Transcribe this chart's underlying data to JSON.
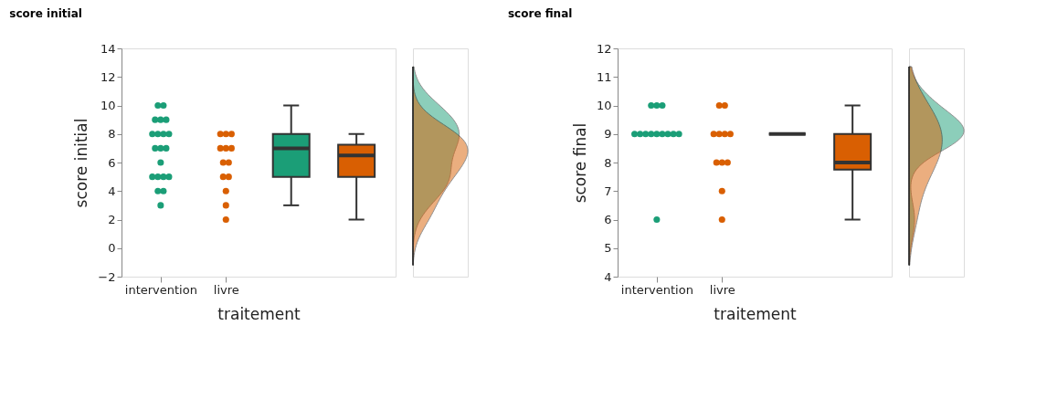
{
  "chart_data": [
    {
      "type": "box",
      "title": "score initial",
      "xlabel": "traitement",
      "ylabel": "score initial",
      "categories": [
        "intervention",
        "livre",
        null,
        null
      ],
      "ylim": [
        -2,
        14
      ],
      "yticks": [
        -2,
        0,
        2,
        4,
        6,
        8,
        10,
        12,
        14
      ],
      "grid": false,
      "boxes": [
        null,
        null,
        {
          "low": 3,
          "q1": 5,
          "median": 7,
          "q3": 8,
          "high": 10
        },
        {
          "low": 2,
          "q1": 5,
          "median": 6.5,
          "q3": 7.25,
          "high": 8
        }
      ],
      "colors": [
        null,
        null,
        "#1b9e77",
        "#d95f02"
      ],
      "series": [
        {
          "type": "scatter",
          "color": "#1b9e77",
          "x": [
            "intervention",
            "intervention",
            "intervention",
            "intervention",
            "intervention",
            "intervention",
            "intervention",
            "intervention",
            "intervention",
            "intervention",
            "intervention",
            "intervention",
            "intervention",
            "intervention",
            "intervention",
            "intervention",
            "intervention",
            "intervention",
            "intervention",
            "intervention"
          ],
          "values": [
            10,
            10,
            9,
            9,
            9,
            8,
            8,
            8,
            8,
            7,
            7,
            7,
            6,
            5,
            5,
            5,
            5,
            4,
            4,
            3
          ]
        },
        {
          "type": "scatter",
          "color": "#d95f02",
          "x": [
            "livre",
            "livre",
            "livre",
            "livre",
            "livre",
            "livre",
            "livre",
            "livre",
            "livre",
            "livre",
            "livre",
            "livre",
            "livre"
          ],
          "values": [
            8,
            8,
            8,
            7,
            7,
            7,
            6,
            6,
            5,
            5,
            4,
            3,
            2
          ]
        }
      ]
    },
    {
      "type": "box",
      "title": "score final",
      "xlabel": "traitement",
      "ylabel": "score final",
      "categories": [
        "intervention",
        "livre",
        null,
        null
      ],
      "ylim": [
        4,
        12
      ],
      "yticks": [
        4,
        5,
        6,
        7,
        8,
        9,
        10,
        11,
        12
      ],
      "grid": false,
      "boxes": [
        null,
        null,
        {
          "low": 9,
          "q1": 9,
          "median": 9,
          "q3": 9,
          "high": 9
        },
        {
          "low": 6,
          "q1": 7.75,
          "median": 8,
          "q3": 9,
          "high": 10
        }
      ],
      "colors": [
        null,
        null,
        null,
        "#d95f02"
      ],
      "series": [
        {
          "type": "scatter",
          "color": "#1b9e77",
          "x": [
            "intervention",
            "intervention",
            "intervention",
            "intervention",
            "intervention",
            "intervention",
            "intervention",
            "intervention",
            "intervention",
            "intervention",
            "intervention",
            "intervention",
            "intervention"
          ],
          "values": [
            10,
            10,
            10,
            9,
            9,
            9,
            9,
            9,
            9,
            9,
            9,
            9,
            6
          ]
        },
        {
          "type": "scatter",
          "color": "#d95f02",
          "x": [
            "livre",
            "livre",
            "livre",
            "livre",
            "livre",
            "livre",
            "livre",
            "livre",
            "livre",
            "livre",
            "livre"
          ],
          "values": [
            10,
            10,
            9,
            9,
            9,
            9,
            8,
            8,
            8,
            7,
            6
          ]
        }
      ]
    }
  ]
}
